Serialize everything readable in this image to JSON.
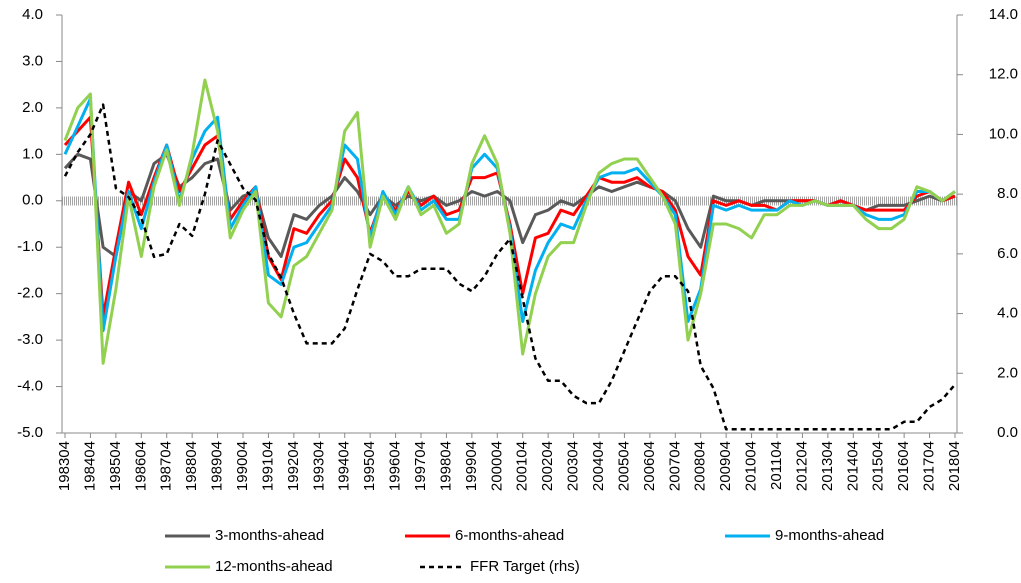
{
  "chart_data": {
    "type": "line",
    "categories": [
      "198304",
      null,
      "198404",
      null,
      "198504",
      null,
      "198604",
      null,
      "198704",
      null,
      "198804",
      null,
      "198904",
      null,
      "199004",
      null,
      "199104",
      null,
      "199204",
      null,
      "199304",
      null,
      "199404",
      null,
      "199504",
      null,
      "199604",
      null,
      "199704",
      null,
      "199804",
      null,
      "199904",
      null,
      "200004",
      null,
      "200104",
      null,
      "200204",
      null,
      "200304",
      null,
      "200404",
      null,
      "200504",
      null,
      "200604",
      null,
      "200704",
      null,
      "200804",
      null,
      "200904",
      null,
      "201004",
      null,
      "201104",
      null,
      "201204",
      null,
      "201304",
      null,
      "201404",
      null,
      "201504",
      null,
      "201604",
      null,
      "201704",
      null,
      "201804"
    ],
    "ylim": [
      -5.0,
      4.0
    ],
    "yticks": [
      {
        "value": -5,
        "label": "-5.0"
      },
      {
        "value": -4,
        "label": "-4.0"
      },
      {
        "value": -3,
        "label": "-3.0"
      },
      {
        "value": -2,
        "label": "-2.0"
      },
      {
        "value": -1,
        "label": "-1.0"
      },
      {
        "value": 0,
        "label": "0.0"
      },
      {
        "value": 1,
        "label": "1.0"
      },
      {
        "value": 2,
        "label": "2.0"
      },
      {
        "value": 3,
        "label": "3.0"
      },
      {
        "value": 4,
        "label": "4.0"
      }
    ],
    "y2lim": [
      0.0,
      14.0
    ],
    "y2ticks": [
      {
        "value": 0,
        "label": "0.0"
      },
      {
        "value": 2,
        "label": "2.0"
      },
      {
        "value": 4,
        "label": "4.0"
      },
      {
        "value": 6,
        "label": "6.0"
      },
      {
        "value": 8,
        "label": "8.0"
      },
      {
        "value": 10,
        "label": "10.0"
      },
      {
        "value": 12,
        "label": "12.0"
      },
      {
        "value": 14,
        "label": "14.0"
      }
    ],
    "series": [
      {
        "name": "3-months-ahead",
        "color": "#595959",
        "values": [
          0.7,
          1.0,
          0.9,
          -1.0,
          -1.2,
          0.2,
          0.0,
          0.8,
          1.0,
          0.3,
          0.5,
          0.8,
          0.9,
          -0.2,
          0.1,
          0.2,
          -0.8,
          -1.2,
          -0.3,
          -0.4,
          -0.1,
          0.1,
          0.5,
          0.2,
          -0.3,
          0.1,
          -0.1,
          0.1,
          0.0,
          0.1,
          -0.1,
          0.0,
          0.2,
          0.1,
          0.2,
          0.0,
          -0.9,
          -0.3,
          -0.2,
          0.0,
          -0.1,
          0.1,
          0.3,
          0.2,
          0.3,
          0.4,
          0.3,
          0.2,
          0.0,
          -0.6,
          -1.0,
          0.1,
          0.0,
          0.0,
          -0.1,
          0.0,
          0.0,
          0.0,
          0.0,
          0.0,
          -0.1,
          0.0,
          -0.1,
          -0.2,
          -0.1,
          -0.1,
          -0.1,
          0.0,
          0.1,
          0.0,
          0.1
        ]
      },
      {
        "name": "6-months-ahead",
        "color": "#ff0000",
        "values": [
          1.2,
          1.5,
          1.8,
          -2.5,
          -1.0,
          0.4,
          -0.3,
          0.5,
          1.2,
          0.2,
          0.7,
          1.2,
          1.4,
          -0.4,
          0.0,
          0.3,
          -1.2,
          -1.7,
          -0.6,
          -0.7,
          -0.3,
          0.0,
          0.9,
          0.5,
          -0.7,
          0.1,
          -0.2,
          0.2,
          -0.1,
          0.1,
          -0.3,
          -0.2,
          0.5,
          0.5,
          0.6,
          -0.5,
          -2.0,
          -0.8,
          -0.7,
          -0.2,
          -0.3,
          0.1,
          0.5,
          0.4,
          0.4,
          0.5,
          0.3,
          0.2,
          -0.2,
          -1.2,
          -1.6,
          0.0,
          -0.1,
          0.0,
          -0.1,
          -0.1,
          -0.2,
          0.0,
          0.0,
          0.0,
          -0.1,
          0.0,
          -0.1,
          -0.2,
          -0.2,
          -0.2,
          -0.2,
          0.1,
          0.2,
          0.0,
          0.1
        ]
      },
      {
        "name": "9-months-ahead",
        "color": "#00b0f0",
        "values": [
          1.0,
          1.6,
          2.2,
          -2.8,
          -1.2,
          0.2,
          -0.6,
          0.4,
          1.2,
          0.0,
          0.9,
          1.5,
          1.8,
          -0.6,
          -0.1,
          0.3,
          -1.6,
          -1.8,
          -1.0,
          -0.9,
          -0.5,
          -0.1,
          1.2,
          0.9,
          -0.8,
          0.2,
          -0.3,
          0.3,
          -0.2,
          0.0,
          -0.4,
          -0.4,
          0.7,
          1.0,
          0.7,
          -0.6,
          -2.6,
          -1.5,
          -0.9,
          -0.5,
          -0.6,
          0.0,
          0.5,
          0.6,
          0.6,
          0.7,
          0.4,
          0.1,
          -0.3,
          -2.6,
          -1.9,
          -0.1,
          -0.2,
          -0.1,
          -0.2,
          -0.2,
          -0.2,
          0.0,
          -0.1,
          0.0,
          -0.1,
          -0.1,
          -0.1,
          -0.3,
          -0.4,
          -0.4,
          -0.3,
          0.2,
          0.2,
          0.0,
          0.2
        ]
      },
      {
        "name": "12-months-ahead",
        "color": "#92d050",
        "values": [
          1.3,
          2.0,
          2.3,
          -3.5,
          -1.9,
          0.1,
          -1.2,
          0.3,
          1.1,
          -0.1,
          1.0,
          2.6,
          1.5,
          -0.8,
          -0.2,
          0.2,
          -2.2,
          -2.5,
          -1.4,
          -1.2,
          -0.7,
          -0.2,
          1.5,
          1.9,
          -1.0,
          0.1,
          -0.4,
          0.3,
          -0.3,
          -0.1,
          -0.7,
          -0.5,
          0.8,
          1.4,
          0.8,
          -0.7,
          -3.3,
          -2.0,
          -1.2,
          -0.9,
          -0.9,
          -0.1,
          0.6,
          0.8,
          0.9,
          0.9,
          0.5,
          0.1,
          -0.5,
          -3.0,
          -2.0,
          -0.5,
          -0.5,
          -0.6,
          -0.8,
          -0.3,
          -0.3,
          -0.1,
          -0.1,
          0.0,
          -0.1,
          -0.1,
          -0.1,
          -0.4,
          -0.6,
          -0.6,
          -0.4,
          0.3,
          0.2,
          0.0,
          0.2
        ]
      },
      {
        "name": "FFR Target (rhs)",
        "color": "#000000",
        "dashed": true,
        "axis": "y2",
        "values": [
          8.6,
          9.4,
          10.0,
          11.0,
          8.2,
          7.9,
          7.2,
          5.9,
          6.0,
          7.0,
          6.6,
          8.0,
          9.8,
          9.0,
          8.2,
          7.8,
          6.0,
          5.2,
          4.0,
          3.0,
          3.0,
          3.0,
          3.5,
          4.8,
          6.0,
          5.75,
          5.25,
          5.25,
          5.5,
          5.5,
          5.5,
          5.0,
          4.75,
          5.25,
          6.0,
          6.5,
          4.5,
          2.5,
          1.75,
          1.75,
          1.25,
          1.0,
          1.0,
          1.75,
          2.75,
          3.75,
          4.75,
          5.25,
          5.25,
          4.75,
          2.25,
          1.5,
          0.125,
          0.125,
          0.125,
          0.125,
          0.125,
          0.125,
          0.125,
          0.125,
          0.125,
          0.125,
          0.125,
          0.125,
          0.125,
          0.125,
          0.375,
          0.375,
          0.875,
          1.125,
          1.625
        ]
      }
    ]
  }
}
